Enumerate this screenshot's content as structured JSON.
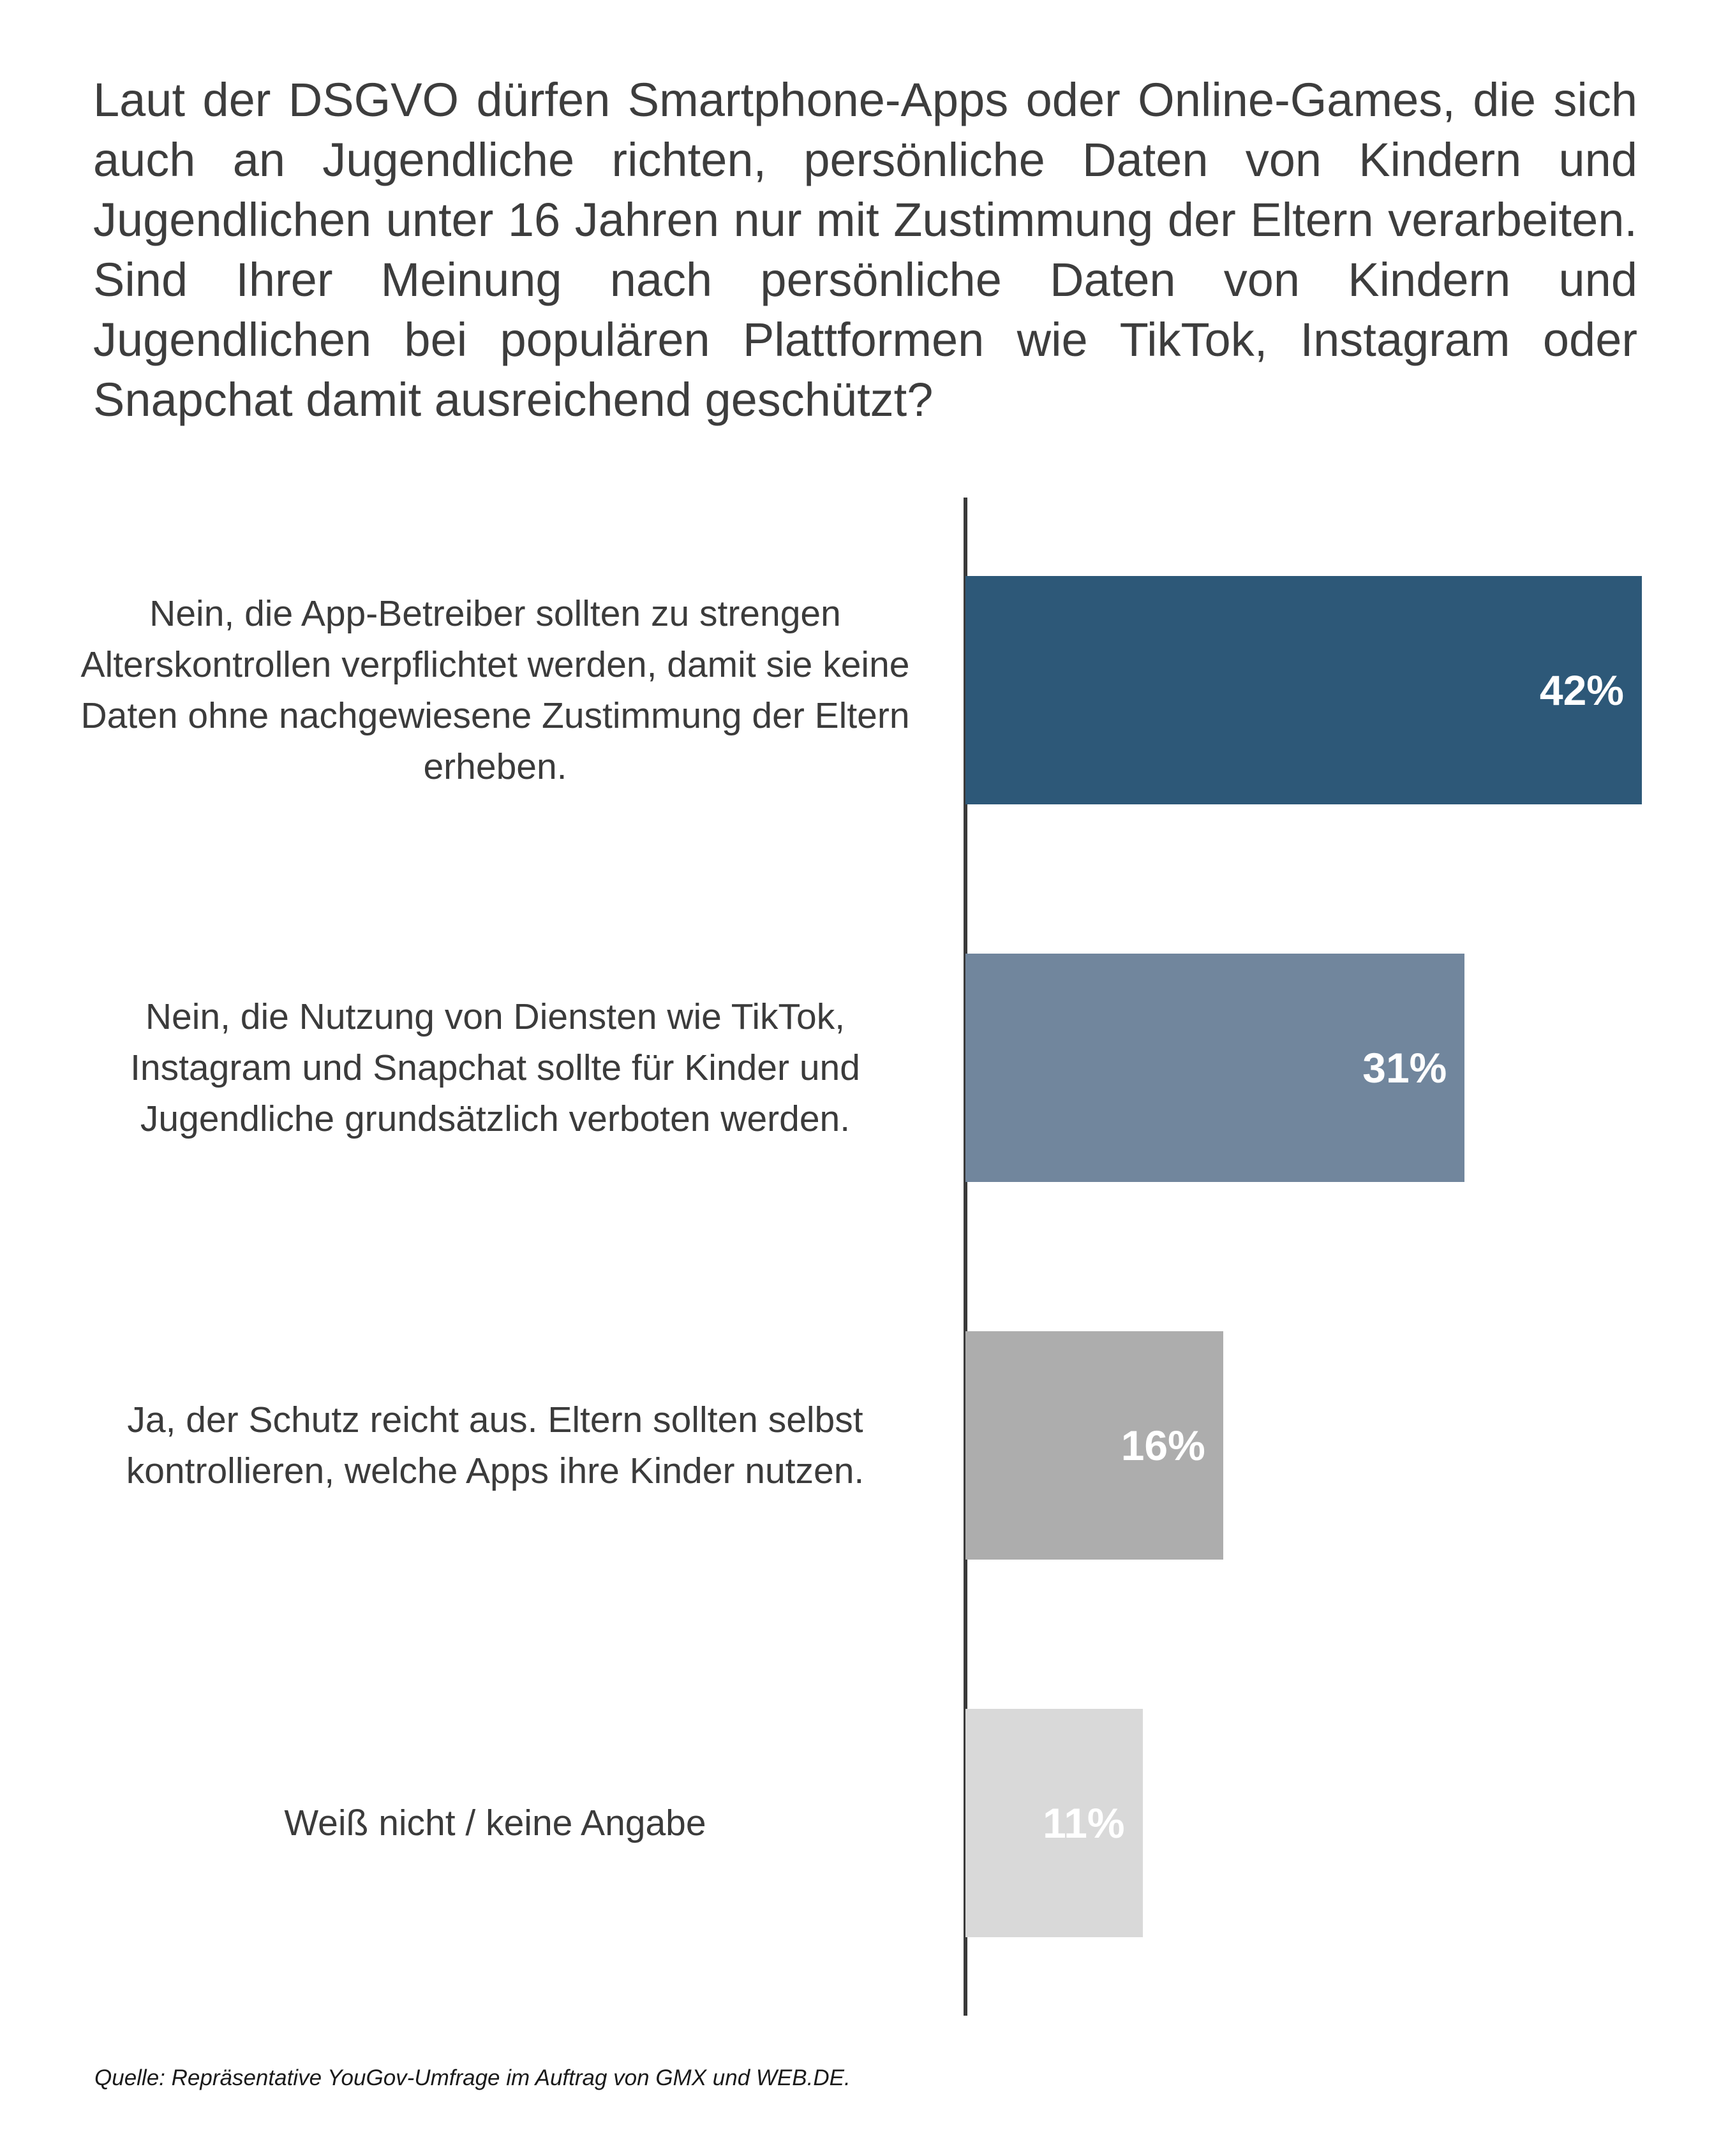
{
  "question": "Laut der DSGVO dürfen Smartphone-Apps oder Online-Games, die sich auch an Jugendliche richten, persönliche Daten von Kindern und Jugendlichen unter 16 Jahren nur mit Zustimmung der Eltern verarbeiten. Sind Ihrer Meinung nach persönliche Daten von Kindern und Jugendlichen bei populären Plattformen wie TikTok, Instagram oder Snapchat damit ausreichend geschützt?",
  "source": "Quelle: Repräsentative YouGov-Umfrage im Auftrag von GMX und WEB.DE.",
  "chart_data": {
    "type": "bar",
    "orientation": "horizontal",
    "categories": [
      "Nein, die App-Betreiber sollten zu strengen Alterskontrollen verpflichtet werden, damit sie keine Daten ohne nachgewiesene Zustimmung der Eltern erheben.",
      "Nein, die Nutzung von Diensten wie TikTok, Instagram und Snapchat sollte für Kinder und Jugendliche grundsätzlich verboten werden.",
      "Ja, der Schutz reicht aus. Eltern sollten selbst kontrollieren, welche Apps ihre Kinder nutzen.",
      "Weiß nicht / keine Angabe"
    ],
    "values": [
      42,
      31,
      16,
      11
    ],
    "value_labels": [
      "42%",
      "31%",
      "16%",
      "11%"
    ],
    "colors": [
      "#2d5878",
      "#71869d",
      "#adadad",
      "#d9d9d9"
    ],
    "xlim": [
      0,
      42
    ],
    "grid": false,
    "legend": "none"
  }
}
